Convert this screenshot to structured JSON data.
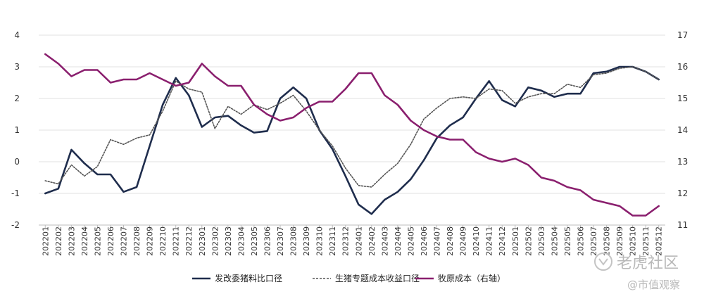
{
  "chart_data": {
    "type": "line",
    "categories": [
      "202201",
      "202202",
      "202203",
      "202204",
      "202205",
      "202206",
      "202207",
      "202208",
      "202209",
      "202210",
      "202211",
      "202212",
      "202301",
      "202302",
      "202303",
      "202304",
      "202305",
      "202306",
      "202307",
      "202308",
      "202309",
      "202310",
      "202311",
      "202312",
      "202401",
      "202402",
      "202403",
      "202404",
      "202405",
      "202406",
      "202407",
      "202408",
      "202409",
      "202410",
      "202411",
      "202412",
      "202501",
      "202502",
      "202503",
      "202504",
      "202505",
      "202506",
      "202507",
      "202508",
      "202509",
      "202510",
      "202511",
      "202512"
    ],
    "ylim_left": [
      -2,
      4
    ],
    "ylim_right": [
      11,
      17
    ],
    "yticks_left": [
      "-2",
      "-1",
      "0",
      "1",
      "2",
      "3",
      "4"
    ],
    "yticks_right": [
      "11",
      "12",
      "13",
      "14",
      "15",
      "16",
      "17"
    ],
    "grid": true,
    "legend_position": "bottom",
    "series": [
      {
        "name": "发改委猪料比口径",
        "axis": "left",
        "color": "#1f2d4d",
        "style": "solid",
        "values": [
          -1.0,
          -0.85,
          0.38,
          -0.05,
          -0.4,
          -0.4,
          -0.95,
          -0.8,
          0.5,
          1.8,
          2.65,
          2.1,
          1.1,
          1.4,
          1.45,
          1.15,
          0.92,
          0.97,
          2.0,
          2.35,
          2.0,
          1.0,
          0.4,
          -0.45,
          -1.35,
          -1.65,
          -1.2,
          -0.95,
          -0.55,
          0.05,
          0.75,
          1.15,
          1.4,
          2.0,
          2.55,
          1.95,
          1.75,
          2.35,
          2.25,
          2.05,
          2.15,
          2.15,
          2.8,
          2.85,
          3.0,
          3.0,
          2.85,
          2.6
        ]
      },
      {
        "name": "生猪专题成本收益口径",
        "axis": "left",
        "color": "#555555",
        "style": "dotted",
        "values": [
          -0.6,
          -0.7,
          -0.1,
          -0.45,
          -0.15,
          0.7,
          0.55,
          0.75,
          0.85,
          1.6,
          2.55,
          2.3,
          2.2,
          1.05,
          1.75,
          1.5,
          1.8,
          1.65,
          1.85,
          2.1,
          1.6,
          1.0,
          0.5,
          -0.2,
          -0.75,
          -0.8,
          -0.4,
          -0.05,
          0.55,
          1.35,
          1.7,
          2.0,
          2.05,
          2.0,
          2.3,
          2.25,
          1.85,
          2.05,
          2.15,
          2.15,
          2.45,
          2.35,
          2.75,
          2.8,
          2.95,
          3.0,
          2.85,
          2.6
        ]
      },
      {
        "name": "牧原成本（右轴）",
        "axis": "right",
        "color": "#8a1f6e",
        "style": "solid",
        "values": [
          16.4,
          16.1,
          15.7,
          15.9,
          15.9,
          15.5,
          15.6,
          15.6,
          15.8,
          15.6,
          15.4,
          15.5,
          16.1,
          15.7,
          15.4,
          15.4,
          14.8,
          14.5,
          14.3,
          14.4,
          14.7,
          14.9,
          14.9,
          15.3,
          15.8,
          15.8,
          15.1,
          14.8,
          14.3,
          14.0,
          13.8,
          13.7,
          13.7,
          13.3,
          13.1,
          13.0,
          13.1,
          12.9,
          12.5,
          12.4,
          12.2,
          12.1,
          11.8,
          11.7,
          11.6,
          11.3,
          11.3,
          11.6
        ]
      }
    ]
  },
  "watermark": {
    "brand": "老虎社区",
    "account": "@市值观察"
  }
}
